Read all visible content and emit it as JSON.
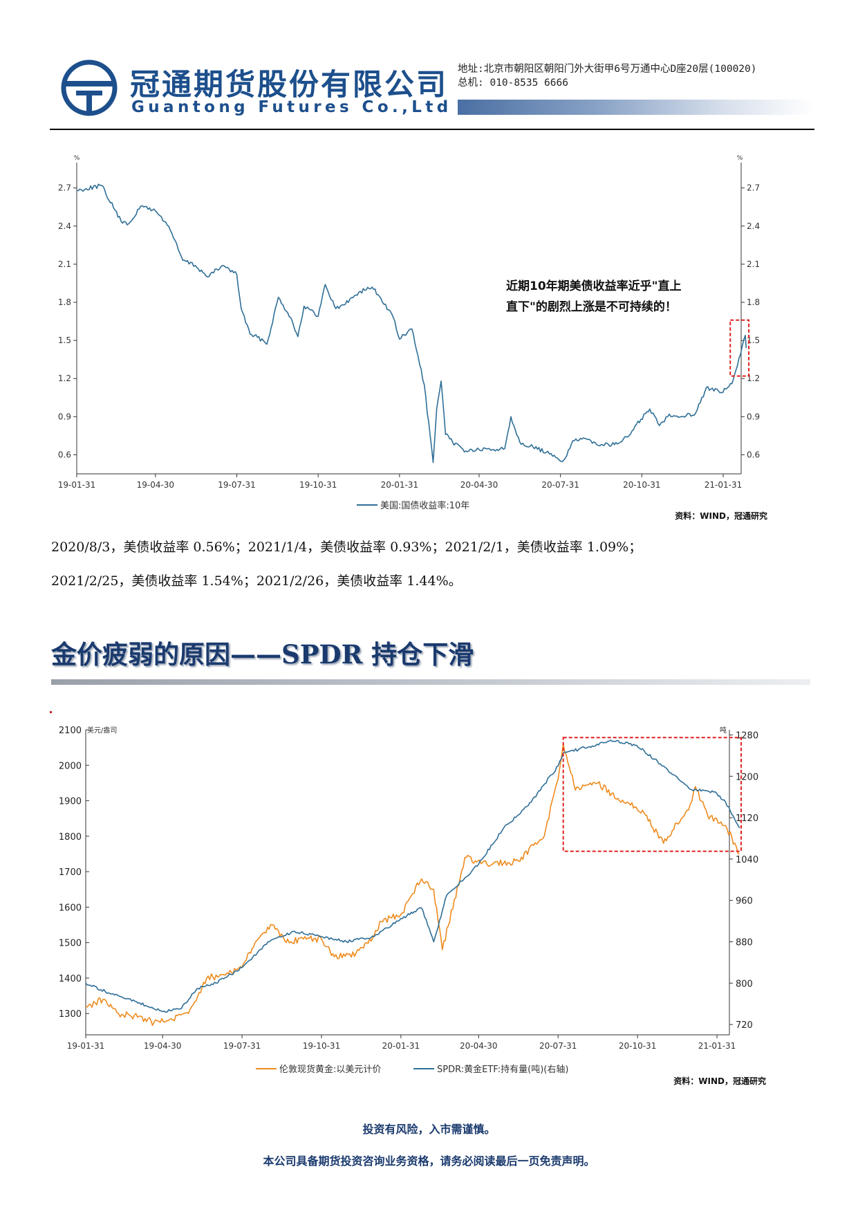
{
  "header": {
    "company_cn": "冠通期货股份有限公司",
    "company_en": "Guantong Futures Co.,Ltd",
    "address": "地址:北京市朝阳区朝阳门外大街甲6号万通中心D座20层(100020)",
    "phone": "总机: 010-8535 6666",
    "colors": {
      "brand": "#1d4f8c"
    }
  },
  "chart_data": [
    {
      "type": "line",
      "y_unit_left": "%",
      "y_unit_right": "%",
      "x_tick_labels": [
        "19-01-31",
        "19-04-30",
        "19-07-31",
        "19-10-31",
        "20-01-31",
        "20-04-30",
        "20-07-31",
        "20-10-31",
        "21-01-31"
      ],
      "y_ticks": [
        "0.6",
        "0.9",
        "1.2",
        "1.5",
        "1.8",
        "2.1",
        "2.4",
        "2.7"
      ],
      "ylim": [
        0.45,
        2.9
      ],
      "series": [
        {
          "name": "美国:国债收益率:10年",
          "color": "#2e6e96",
          "x": [
            "2019-01-31",
            "2019-02-28",
            "2019-03-22",
            "2019-03-29",
            "2019-04-15",
            "2019-04-30",
            "2019-05-15",
            "2019-05-31",
            "2019-06-14",
            "2019-06-28",
            "2019-07-15",
            "2019-07-31",
            "2019-08-05",
            "2019-08-15",
            "2019-08-30",
            "2019-09-03",
            "2019-09-16",
            "2019-09-30",
            "2019-10-08",
            "2019-10-15",
            "2019-10-31",
            "2019-11-08",
            "2019-11-20",
            "2019-11-29",
            "2019-12-16",
            "2019-12-31",
            "2020-01-10",
            "2020-01-24",
            "2020-01-31",
            "2020-02-14",
            "2020-02-28",
            "2020-03-09",
            "2020-03-13",
            "2020-03-18",
            "2020-03-23",
            "2020-03-31",
            "2020-04-15",
            "2020-04-30",
            "2020-05-15",
            "2020-05-29",
            "2020-06-05",
            "2020-06-15",
            "2020-06-30",
            "2020-07-15",
            "2020-07-31",
            "2020-08-04",
            "2020-08-14",
            "2020-08-31",
            "2020-09-15",
            "2020-09-30",
            "2020-10-15",
            "2020-10-30",
            "2020-11-09",
            "2020-11-20",
            "2020-12-01",
            "2020-12-15",
            "2020-12-31",
            "2021-01-12",
            "2021-01-29",
            "2021-02-10",
            "2021-02-16",
            "2021-02-25",
            "2021-02-26"
          ],
          "values": [
            2.68,
            2.72,
            2.44,
            2.41,
            2.56,
            2.52,
            2.4,
            2.13,
            2.09,
            2.0,
            2.09,
            2.02,
            1.75,
            1.55,
            1.5,
            1.47,
            1.84,
            1.68,
            1.53,
            1.77,
            1.69,
            1.94,
            1.75,
            1.78,
            1.88,
            1.92,
            1.83,
            1.68,
            1.51,
            1.59,
            1.15,
            0.54,
            0.96,
            1.18,
            0.76,
            0.7,
            0.63,
            0.64,
            0.64,
            0.65,
            0.9,
            0.7,
            0.66,
            0.62,
            0.55,
            0.56,
            0.71,
            0.72,
            0.68,
            0.68,
            0.74,
            0.88,
            0.96,
            0.83,
            0.92,
            0.9,
            0.93,
            1.13,
            1.09,
            1.16,
            1.3,
            1.54,
            1.44
          ]
        }
      ],
      "annotation": "近期10年期美债收益率近乎\"直上直下\"的剧烈上涨是不可持续的！",
      "annotation_lines": [
        "近期10年期美债收益率近乎\"直上",
        "直下\"的剧烈上涨是不可持续的！"
      ],
      "highlight": "red dashed box around the last weeks",
      "source": "资料：WIND，冠通研究",
      "grid": false,
      "legend_position": "bottom-left"
    },
    {
      "type": "line",
      "y_unit_left": "美元/盎司",
      "y_unit_right": "吨",
      "x_tick_labels": [
        "19-01-31",
        "19-04-30",
        "19-07-31",
        "19-10-31",
        "20-01-31",
        "20-04-30",
        "20-07-31",
        "20-10-31",
        "21-01-31"
      ],
      "y_ticks_left": [
        "1300",
        "1400",
        "1500",
        "1600",
        "1700",
        "1800",
        "1900",
        "2000",
        "2100"
      ],
      "y_ticks_right": [
        "720",
        "800",
        "880",
        "960",
        "1040",
        "1120",
        "1200",
        "1280"
      ],
      "ylim_left": [
        1240,
        2100
      ],
      "ylim_right": [
        700,
        1290
      ],
      "series": [
        {
          "name": "伦敦现货黄金:以美元计价",
          "axis": "left",
          "color": "#ee8a1c",
          "x": [
            "2019-01-31",
            "2019-02-20",
            "2019-03-10",
            "2019-04-01",
            "2019-04-20",
            "2019-05-10",
            "2019-05-30",
            "2019-06-20",
            "2019-07-10",
            "2019-07-31",
            "2019-08-15",
            "2019-09-04",
            "2019-09-20",
            "2019-10-10",
            "2019-10-31",
            "2019-11-15",
            "2019-12-10",
            "2019-12-31",
            "2020-01-08",
            "2020-01-31",
            "2020-02-24",
            "2020-03-09",
            "2020-03-19",
            "2020-04-14",
            "2020-05-15",
            "2020-06-15",
            "2020-07-15",
            "2020-07-31",
            "2020-08-06",
            "2020-08-20",
            "2020-09-15",
            "2020-10-10",
            "2020-10-30",
            "2020-11-09",
            "2020-11-30",
            "2020-12-31",
            "2021-01-06",
            "2021-01-20",
            "2021-02-10",
            "2021-02-26"
          ],
          "values": [
            1320,
            1340,
            1300,
            1290,
            1275,
            1285,
            1300,
            1400,
            1410,
            1430,
            1500,
            1550,
            1500,
            1510,
            1510,
            1460,
            1470,
            1520,
            1560,
            1580,
            1680,
            1650,
            1480,
            1740,
            1720,
            1730,
            1800,
            1960,
            2060,
            1930,
            1950,
            1900,
            1880,
            1860,
            1780,
            1890,
            1940,
            1860,
            1830,
            1750
          ]
        },
        {
          "name": "SPDR:黄金ETF:持有量(吨)(右轴)",
          "axis": "right",
          "color": "#2e6e96",
          "x": [
            "2019-01-31",
            "2019-02-28",
            "2019-03-29",
            "2019-04-30",
            "2019-05-20",
            "2019-06-10",
            "2019-07-01",
            "2019-07-31",
            "2019-08-30",
            "2019-09-30",
            "2019-10-31",
            "2019-11-29",
            "2019-12-31",
            "2020-01-31",
            "2020-02-24",
            "2020-03-09",
            "2020-03-24",
            "2020-04-30",
            "2020-05-29",
            "2020-06-30",
            "2020-07-31",
            "2020-08-06",
            "2020-08-31",
            "2020-09-30",
            "2020-10-30",
            "2020-11-30",
            "2020-12-31",
            "2021-01-29",
            "2021-02-10",
            "2021-02-26"
          ],
          "values": [
            800,
            780,
            765,
            745,
            750,
            790,
            800,
            830,
            880,
            900,
            890,
            880,
            890,
            925,
            945,
            880,
            970,
            1030,
            1100,
            1150,
            1220,
            1245,
            1255,
            1270,
            1260,
            1220,
            1175,
            1170,
            1150,
            1100
          ]
        }
      ],
      "highlight": "red dashed box around 2020-08 to 2021-02",
      "source": "资料：WIND，冠通研究",
      "grid": false,
      "legend_position": "bottom"
    }
  ],
  "paragraphs": [
    "2020/8/3，美债收益率 0.56%；2021/1/4，美债收益率 0.93%；2021/2/1，美债收益率 1.09%；",
    "2021/2/25，美债收益率 1.54%；2021/2/26，美债收益率 1.44%。"
  ],
  "section_title": "金价疲弱的原因——SPDR 持仓下滑",
  "footer": {
    "risk": "投资有风险，入市需谨慎。",
    "disclaimer": "本公司具备期货投资咨询业务资格，请务必阅读最后一页免责声明。"
  }
}
